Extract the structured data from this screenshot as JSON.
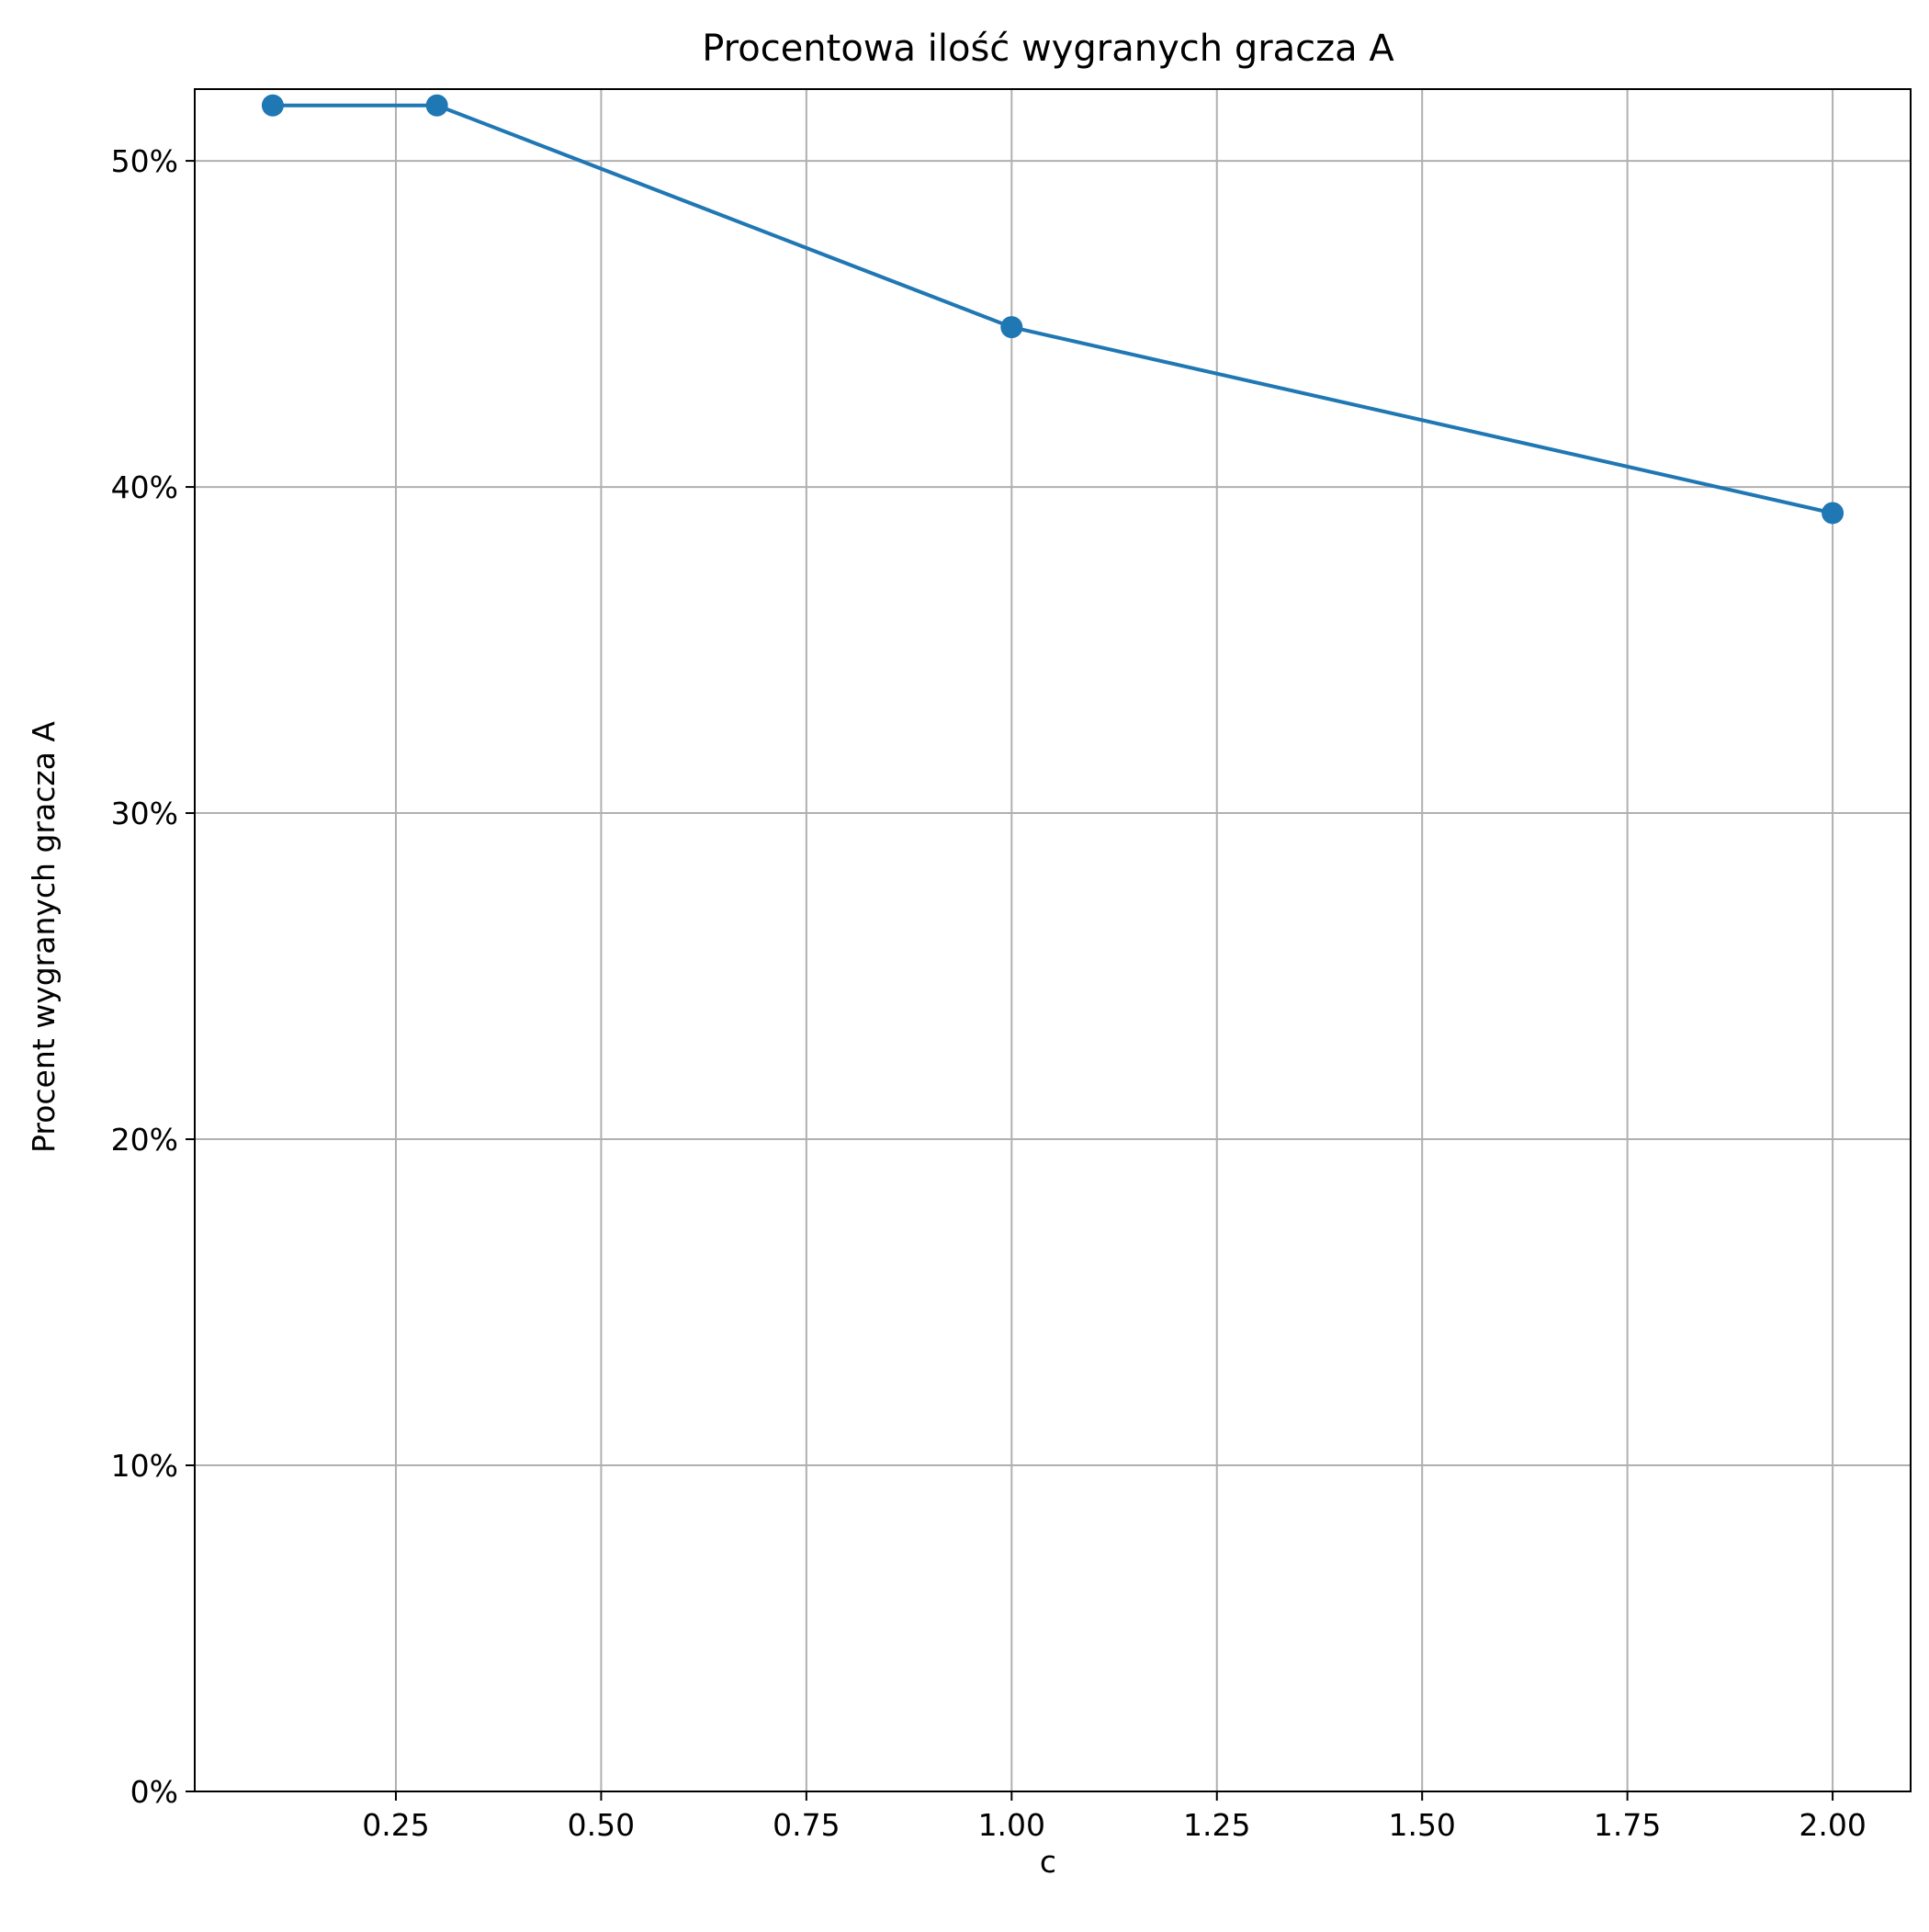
{
  "chart_data": {
    "type": "line",
    "title": "Procentowa ilość wygranych gracza A",
    "xlabel": "c",
    "ylabel": "Procent wygranych gracza A",
    "x": [
      0.1,
      0.3,
      1.0,
      2.0
    ],
    "series": [
      {
        "values": [
          51.7,
          51.7,
          44.9,
          39.2
        ],
        "color": "#1f77b4",
        "marker": "circle"
      }
    ],
    "xlim": [
      0.005,
      2.095
    ],
    "ylim": [
      0,
      52.2
    ],
    "x_ticks": [
      0.25,
      0.5,
      0.75,
      1.0,
      1.25,
      1.5,
      1.75,
      2.0
    ],
    "x_tick_labels": [
      "0.25",
      "0.50",
      "0.75",
      "1.00",
      "1.25",
      "1.50",
      "1.75",
      "2.00"
    ],
    "y_ticks": [
      0,
      10,
      20,
      30,
      40,
      50
    ],
    "y_tick_labels": [
      "0%",
      "10%",
      "20%",
      "30%",
      "40%",
      "50%"
    ],
    "grid": true,
    "legend": "none"
  }
}
